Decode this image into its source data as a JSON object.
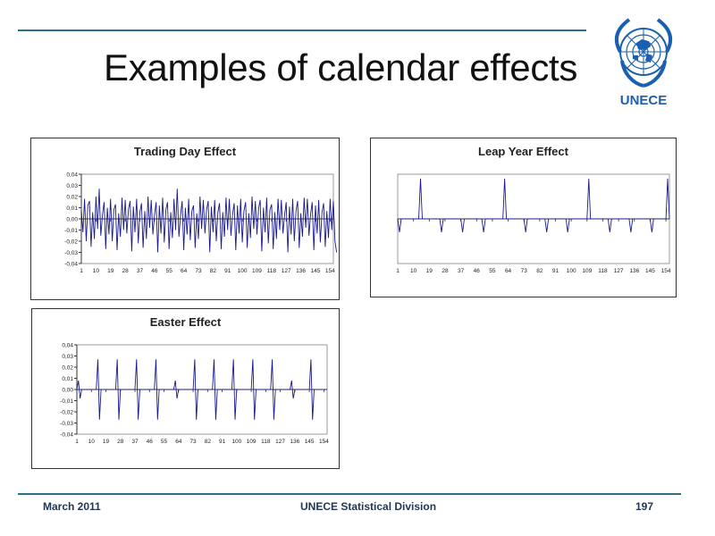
{
  "slide": {
    "title": "Examples of calendar effects"
  },
  "logo": {
    "text": "UNECE",
    "color": "#1b5fb0"
  },
  "footer": {
    "date": "March 2011",
    "organization": "UNECE Statistical Division",
    "page": "197"
  },
  "chart_data": [
    {
      "type": "line",
      "title": "Trading Day Effect",
      "xlabel": "",
      "ylabel": "",
      "x_ticks": [
        "1",
        "10",
        "19",
        "28",
        "37",
        "46",
        "55",
        "64",
        "73",
        "82",
        "91",
        "100",
        "109",
        "118",
        "127",
        "136",
        "145",
        "154"
      ],
      "y_ticks": [
        "0,04",
        "0,03",
        "0,02",
        "0,01",
        "0,00",
        "-0,01",
        "-0,02",
        "-0,03",
        "-0,04"
      ],
      "ylim": [
        -0.04,
        0.04
      ],
      "x_range": [
        1,
        156
      ],
      "grid": false,
      "series_color": "#1a1a8c",
      "pattern": "weekly oscillating trading day factor between approximately -0.03 and 0.027",
      "series": [
        {
          "values": [
            0.008,
            -0.012,
            0.018,
            -0.02,
            0.012,
            0.016,
            -0.025,
            0.006,
            -0.018,
            0.02,
            -0.009,
            0.027,
            -0.015,
            0.004,
            0.015,
            -0.027,
            0.01,
            -0.014,
            0.018,
            -0.02,
            0.008,
            0.013,
            -0.028,
            0.005,
            -0.016,
            0.019,
            -0.01,
            0.017,
            -0.013,
            0.009,
            0.016,
            -0.029,
            0.011,
            -0.012,
            0.018,
            -0.022,
            0.006,
            0.014,
            -0.026,
            0.007,
            -0.018,
            0.02,
            -0.008,
            0.017,
            -0.014,
            0.004,
            0.015,
            -0.03,
            0.012,
            -0.013,
            0.019,
            -0.021,
            0.008,
            0.015,
            -0.027,
            0.006,
            -0.017,
            0.018,
            -0.01,
            0.027,
            -0.016,
            0.003,
            0.016,
            -0.028,
            0.01,
            -0.014,
            0.018,
            -0.019,
            0.007,
            0.012,
            -0.026,
            0.005,
            -0.018,
            0.02,
            -0.009,
            0.017,
            -0.013,
            0.008,
            0.016,
            -0.03,
            0.011,
            -0.012,
            0.017,
            -0.02,
            0.006,
            0.014,
            -0.027,
            0.006,
            -0.016,
            0.019,
            -0.01,
            0.018,
            -0.015,
            0.004,
            0.014,
            -0.028,
            0.012,
            -0.013,
            0.018,
            -0.021,
            0.007,
            0.015,
            -0.026,
            0.005,
            -0.017,
            0.02,
            -0.009,
            0.016,
            -0.014,
            0.009,
            0.017,
            -0.029,
            0.01,
            -0.012,
            0.019,
            -0.022,
            0.008,
            0.013,
            -0.027,
            0.006,
            -0.018,
            0.018,
            -0.01,
            0.017,
            -0.013,
            0.003,
            0.015,
            -0.03,
            0.011,
            -0.014,
            0.018,
            -0.02,
            0.007,
            0.016,
            -0.026,
            0.005,
            -0.016,
            0.019,
            -0.008,
            0.018,
            -0.015,
            0.004,
            0.015,
            -0.028,
            0.012,
            -0.013,
            0.017,
            -0.021,
            0.006,
            0.014,
            -0.025,
            0.007,
            -0.017,
            0.018,
            -0.01,
            0.016,
            -0.02,
            -0.03
          ]
        }
      ]
    },
    {
      "type": "line",
      "title": "Leap Year Effect",
      "xlabel": "",
      "ylabel": "",
      "x_ticks": [
        "1",
        "10",
        "19",
        "28",
        "37",
        "46",
        "55",
        "64",
        "73",
        "82",
        "91",
        "100",
        "109",
        "118",
        "127",
        "136",
        "145",
        "154"
      ],
      "y_ticks": [],
      "ylim": [
        -0.04,
        0.04
      ],
      "x_range": [
        1,
        156
      ],
      "grid": false,
      "series_color": "#1a1a8c",
      "pattern": "February spikes every 48 months (peaks near x=14, 62, 110, 158) with small non-leap February dips",
      "peaks": [
        {
          "x": 14,
          "y": 0.036
        },
        {
          "x": 62,
          "y": 0.036
        },
        {
          "x": 110,
          "y": 0.036
        },
        {
          "x": 155,
          "y": 0.036
        }
      ],
      "dips": [
        {
          "x": 2,
          "y": -0.012
        },
        {
          "x": 26,
          "y": -0.012
        },
        {
          "x": 38,
          "y": -0.012
        },
        {
          "x": 50,
          "y": -0.012
        },
        {
          "x": 74,
          "y": -0.012
        },
        {
          "x": 86,
          "y": -0.012
        },
        {
          "x": 98,
          "y": -0.012
        },
        {
          "x": 122,
          "y": -0.012
        },
        {
          "x": 134,
          "y": -0.012
        },
        {
          "x": 146,
          "y": -0.012
        }
      ]
    },
    {
      "type": "line",
      "title": "Easter Effect",
      "xlabel": "",
      "ylabel": "",
      "x_ticks": [
        "1",
        "10",
        "19",
        "28",
        "37",
        "46",
        "55",
        "64",
        "73",
        "82",
        "91",
        "100",
        "109",
        "118",
        "127",
        "136",
        "145",
        "154"
      ],
      "y_ticks": [
        "0,04",
        "0,03",
        "0,02",
        "0,01",
        "0,00",
        "-0,01",
        "-0,02",
        "-0,03",
        "-0,04"
      ],
      "ylim": [
        -0.04,
        0.04
      ],
      "x_range": [
        1,
        156
      ],
      "grid": false,
      "series_color": "#1a1a8c",
      "pattern": "Easter moving holiday: yearly positive spike followed by negative spike in March/April",
      "events": [
        {
          "x": 2,
          "pos": 0.008,
          "neg": -0.008
        },
        {
          "x": 14,
          "pos": 0.027,
          "neg": -0.027
        },
        {
          "x": 26,
          "pos": 0.027,
          "neg": -0.027
        },
        {
          "x": 38,
          "pos": 0.027,
          "neg": -0.027
        },
        {
          "x": 50,
          "pos": 0.027,
          "neg": -0.027
        },
        {
          "x": 62,
          "pos": 0.008,
          "neg": -0.008
        },
        {
          "x": 74,
          "pos": 0.027,
          "neg": -0.027
        },
        {
          "x": 86,
          "pos": 0.027,
          "neg": -0.027
        },
        {
          "x": 98,
          "pos": 0.027,
          "neg": -0.027
        },
        {
          "x": 110,
          "pos": 0.027,
          "neg": -0.027
        },
        {
          "x": 122,
          "pos": 0.027,
          "neg": -0.027
        },
        {
          "x": 134,
          "pos": 0.008,
          "neg": -0.008
        },
        {
          "x": 146,
          "pos": 0.027,
          "neg": -0.027
        }
      ]
    }
  ]
}
